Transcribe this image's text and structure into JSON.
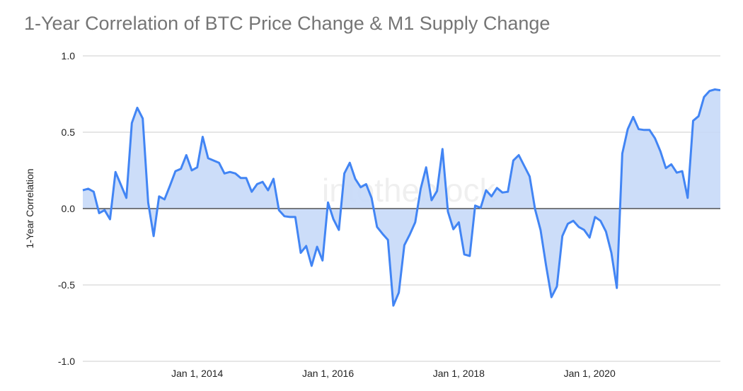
{
  "chart_data": {
    "type": "area",
    "title": "1-Year Correlation of BTC Price Change & M1 Supply Change",
    "xlabel": "",
    "ylabel": "1-Year Correlation",
    "ylim": [
      -1.0,
      1.0
    ],
    "yticks": [
      "1.0",
      "0.5",
      "0.0",
      "-0.5",
      "-1.0"
    ],
    "ytick_values": [
      1.0,
      0.5,
      0.0,
      -0.5,
      -1.0
    ],
    "xticks": [
      "Jan 1, 2014",
      "Jan 1, 2016",
      "Jan 1, 2018",
      "Jan 1, 2020"
    ],
    "xtick_dates": [
      "2014-01",
      "2016-01",
      "2018-01",
      "2020-01"
    ],
    "grid": true,
    "legend": "none",
    "watermark": "intotheblock",
    "colors": {
      "line": "#4285f4",
      "fill": "#c6d9f8",
      "title": "#757575",
      "zero_line": "#333333",
      "grid": "#cccccc"
    },
    "x": [
      "2012-04",
      "2012-05",
      "2012-06",
      "2012-07",
      "2012-08",
      "2012-09",
      "2012-10",
      "2012-11",
      "2012-12",
      "2013-01",
      "2013-02",
      "2013-03",
      "2013-04",
      "2013-05",
      "2013-06",
      "2013-07",
      "2013-08",
      "2013-09",
      "2013-10",
      "2013-11",
      "2013-12",
      "2014-01",
      "2014-02",
      "2014-03",
      "2014-04",
      "2014-05",
      "2014-06",
      "2014-07",
      "2014-08",
      "2014-09",
      "2014-10",
      "2014-11",
      "2014-12",
      "2015-01",
      "2015-02",
      "2015-03",
      "2015-04",
      "2015-05",
      "2015-06",
      "2015-07",
      "2015-08",
      "2015-09",
      "2015-10",
      "2015-11",
      "2015-12",
      "2016-01",
      "2016-02",
      "2016-03",
      "2016-04",
      "2016-05",
      "2016-06",
      "2016-07",
      "2016-08",
      "2016-09",
      "2016-10",
      "2016-11",
      "2016-12",
      "2017-01",
      "2017-02",
      "2017-03",
      "2017-04",
      "2017-05",
      "2017-06",
      "2017-07",
      "2017-08",
      "2017-09",
      "2017-10",
      "2017-11",
      "2017-12",
      "2018-01",
      "2018-02",
      "2018-03",
      "2018-04",
      "2018-05",
      "2018-06",
      "2018-07",
      "2018-08",
      "2018-09",
      "2018-10",
      "2018-11",
      "2018-12",
      "2019-01",
      "2019-02",
      "2019-03",
      "2019-04",
      "2019-05",
      "2019-06",
      "2019-07",
      "2019-08",
      "2019-09",
      "2019-10",
      "2019-11",
      "2019-12",
      "2020-01",
      "2020-02",
      "2020-03",
      "2020-04",
      "2020-05",
      "2020-06",
      "2020-07",
      "2020-08",
      "2020-09",
      "2020-10",
      "2020-11",
      "2020-12",
      "2021-01",
      "2021-02",
      "2021-03",
      "2021-04",
      "2021-05",
      "2021-06",
      "2021-07",
      "2021-08",
      "2021-09",
      "2021-10",
      "2021-11",
      "2021-12",
      "2022-01"
    ],
    "series": [
      {
        "values": [
          0.12,
          0.13,
          0.11,
          -0.03,
          -0.01,
          -0.07,
          0.24,
          0.155,
          0.07,
          0.56,
          0.66,
          0.59,
          0.04,
          -0.18,
          0.08,
          0.06,
          0.15,
          0.245,
          0.26,
          0.35,
          0.25,
          0.27,
          0.47,
          0.33,
          0.315,
          0.3,
          0.23,
          0.24,
          0.23,
          0.2,
          0.2,
          0.11,
          0.16,
          0.175,
          0.12,
          0.195,
          -0.01,
          -0.05,
          -0.055,
          -0.055,
          -0.29,
          -0.245,
          -0.375,
          -0.25,
          -0.34,
          0.04,
          -0.07,
          -0.14,
          0.23,
          0.3,
          0.195,
          0.14,
          0.16,
          0.07,
          -0.12,
          -0.165,
          -0.205,
          -0.635,
          -0.55,
          -0.24,
          -0.17,
          -0.09,
          0.13,
          0.27,
          0.055,
          0.115,
          0.39,
          -0.02,
          -0.135,
          -0.09,
          -0.3,
          -0.31,
          0.02,
          0.005,
          0.12,
          0.08,
          0.135,
          0.105,
          0.11,
          0.315,
          0.35,
          0.28,
          0.21,
          -0.005,
          -0.14,
          -0.37,
          -0.58,
          -0.51,
          -0.18,
          -0.1,
          -0.08,
          -0.12,
          -0.14,
          -0.19,
          -0.055,
          -0.08,
          -0.15,
          -0.29,
          -0.52,
          0.36,
          0.52,
          0.6,
          0.52,
          0.515,
          0.515,
          0.46,
          0.375,
          0.265,
          0.29,
          0.235,
          0.245,
          0.07,
          0.575,
          0.605,
          0.73,
          0.77,
          0.78,
          0.775
        ]
      }
    ]
  }
}
